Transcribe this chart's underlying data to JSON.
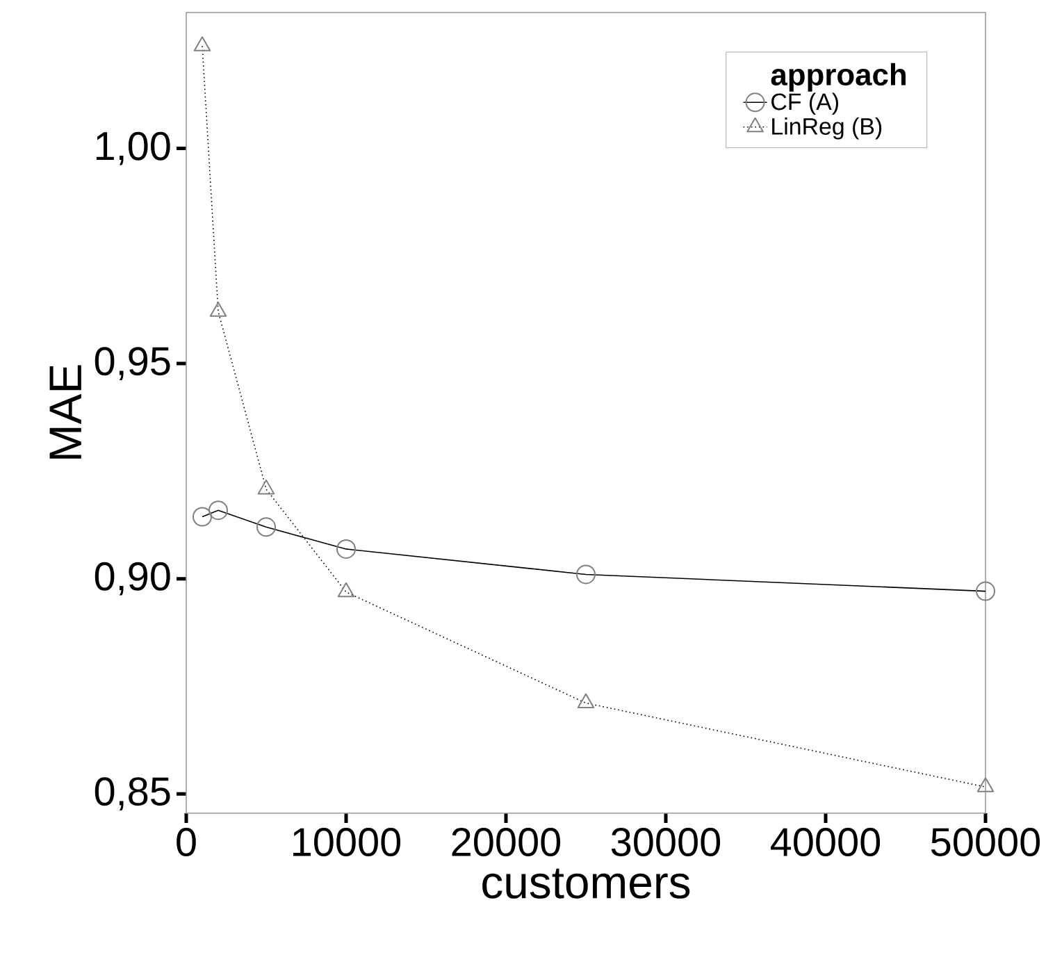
{
  "chart_data": {
    "type": "line",
    "xlabel": "customers",
    "ylabel": "MAE",
    "legend_title": "approach",
    "legend": "top right",
    "xlim": [
      0,
      50000
    ],
    "xticks": [
      0,
      10000,
      20000,
      30000,
      40000,
      50000
    ],
    "ylim": [
      0.8455,
      1.0316
    ],
    "yticks": [
      {
        "value": 0.85,
        "label": "0,85"
      },
      {
        "value": 0.9,
        "label": "0,90"
      },
      {
        "value": 0.95,
        "label": "0,95"
      },
      {
        "value": 1.0,
        "label": "1,00"
      }
    ],
    "x": [
      1000,
      2000,
      5000,
      10000,
      25000,
      50000
    ],
    "series": [
      {
        "name": "CF (A)",
        "color": "#000000",
        "marker": "circle",
        "line_style": "solid",
        "values": [
          0.9144,
          0.9159,
          0.912,
          0.9069,
          0.901,
          0.8971
        ]
      },
      {
        "name": "LinReg (B)",
        "color": "#000000",
        "marker": "triangle",
        "line_style": "dotted",
        "values": [
          1.0238,
          0.9621,
          0.9208,
          0.8969,
          0.8711,
          0.8516
        ]
      }
    ]
  }
}
